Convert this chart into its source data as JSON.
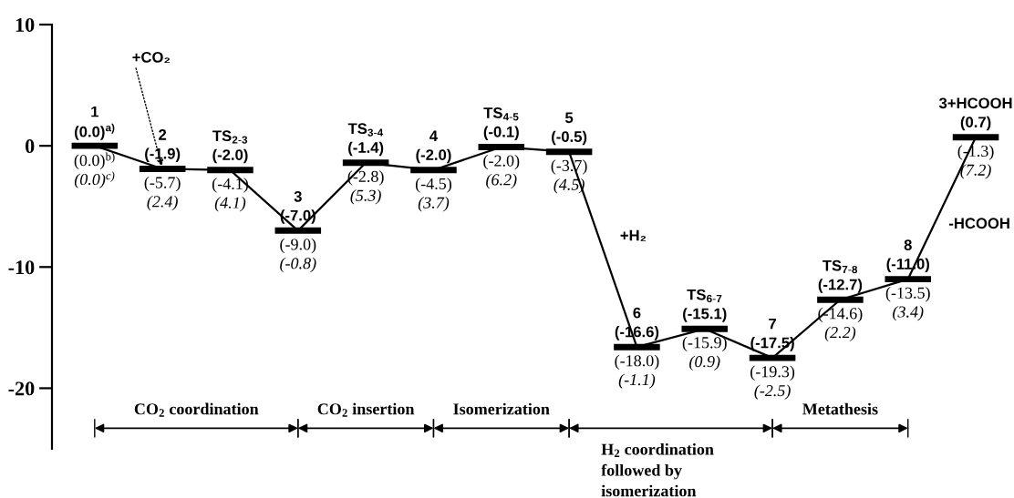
{
  "chart_data": {
    "type": "line",
    "categories": [
      "1",
      "2",
      "TS$_{2-3}$",
      "3",
      "TS$_{3-4}$",
      "4",
      "TS$_{4-5}$",
      "5",
      "6",
      "TS$_{6-7}$",
      "7",
      "TS$_{7-8}$",
      "8",
      "3+HCOOH"
    ],
    "series": [
      {
        "color": "#000000",
        "values": [
          0.0,
          -1.9,
          -2.0,
          -7.0,
          -1.4,
          -2.0,
          -0.1,
          -0.5,
          -16.6,
          -15.1,
          -17.5,
          -12.7,
          -11.0,
          0.7
        ],
        "value_labels": [
          "(0.0)$^{a)}$",
          "(-1.9)",
          "(-2.0)",
          "(-7.0)",
          "(-1.4)",
          "(-2.0)",
          "(-0.1)",
          "(-0.5)",
          "(-16.6)",
          "(-15.1)",
          "(-17.5)",
          "(-12.7)",
          "(-11.0)",
          "(0.7)"
        ]
      }
    ],
    "ylim": [
      -25,
      10
    ],
    "yticks": [
      10,
      0,
      -10,
      -20
    ],
    "tick_labels": "y",
    "grid": false,
    "legend": false,
    "annotations": [
      {
        "text": "+CO₂",
        "x": "2",
        "y": -1.9
      },
      "+H₂",
      "-HCOOH",
      "CO$_{2}$ coordination",
      "CO$_{2}$ insertion",
      "Isomerization",
      "H$_{2}$ coordination\nfollowed by\nisomerization",
      "Metathesis",
      {
        "text": "(0.0)$^{b)}$",
        "x": "1",
        "y": 0.0
      },
      {
        "text": "(0.0)$^{c)}$",
        "x": "1",
        "y": 0.0
      },
      {
        "text": "(-5.7)",
        "x": "2",
        "y": -1.9
      },
      {
        "text": "(2.4)",
        "x": "2",
        "y": -1.9
      },
      {
        "text": "(-4.1)",
        "x": "TS$_{2-3}$",
        "y": -2.0
      },
      {
        "text": "(4.1)",
        "x": "TS$_{2-3}$",
        "y": -2.0
      },
      {
        "text": "(-9.0)",
        "x": "3",
        "y": -7.0
      },
      {
        "text": "(-0.8)",
        "x": "3",
        "y": -7.0
      },
      {
        "text": "(-2.8)",
        "x": "TS$_{3-4}$",
        "y": -1.4
      },
      {
        "text": "(5.3)",
        "x": "TS$_{3-4}$",
        "y": -1.4
      },
      {
        "text": "(-4.5)",
        "x": "4",
        "y": -2.0
      },
      {
        "text": "(3.7)",
        "x": "4",
        "y": -2.0
      },
      {
        "text": "(-2.0)",
        "x": "TS$_{4-5}$",
        "y": -0.1
      },
      {
        "text": "(6.2)",
        "x": "TS$_{4-5}$",
        "y": -0.1
      },
      {
        "text": "(-3.7)",
        "x": "5",
        "y": -0.5
      },
      {
        "text": "(4.5)",
        "x": "5",
        "y": -0.5
      },
      {
        "text": "(-18.0)",
        "x": "6",
        "y": -16.6
      },
      {
        "text": "(-1.1)",
        "x": "6",
        "y": -16.6
      },
      {
        "text": "(-15.9)",
        "x": "TS$_{6-7}$",
        "y": -15.1
      },
      {
        "text": "(0.9)",
        "x": "TS$_{6-7}$",
        "y": -15.1
      },
      {
        "text": "(-19.3)",
        "x": "7",
        "y": -17.5
      },
      {
        "text": "(-2.5)",
        "x": "7",
        "y": -17.5
      },
      {
        "text": "(-14.6)",
        "x": "TS$_{7-8}$",
        "y": -12.7
      },
      {
        "text": "(2.2)",
        "x": "TS$_{7-8}$",
        "y": -12.7
      },
      {
        "text": "(-13.5)",
        "x": "8",
        "y": -11.0
      },
      {
        "text": "(3.4)",
        "x": "8",
        "y": -11.0
      },
      {
        "text": "(-1.3)",
        "x": "3+HCOOH",
        "y": 0.7
      },
      {
        "text": "(7.2)",
        "x": "3+HCOOH",
        "y": 0.7
      }
    ]
  }
}
